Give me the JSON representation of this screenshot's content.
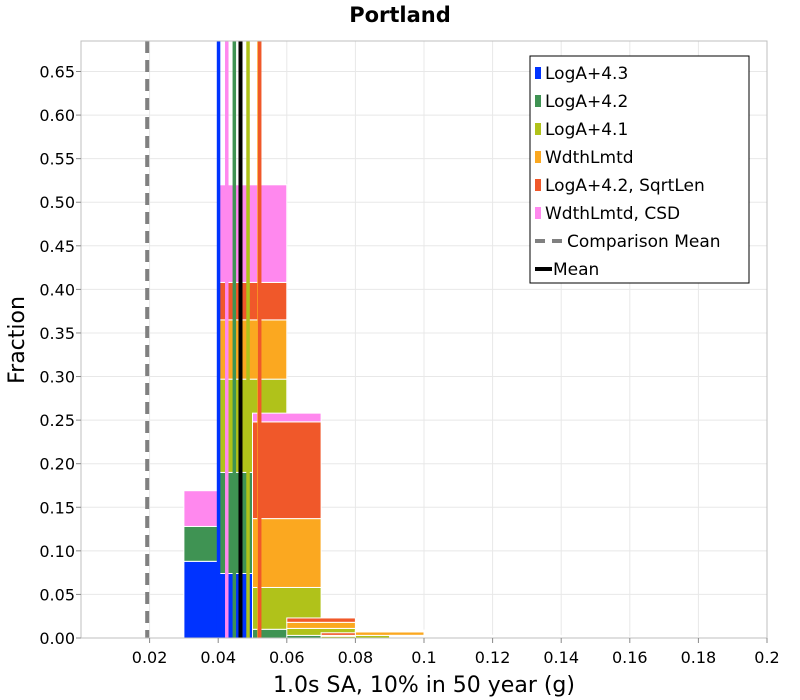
{
  "chart_data": {
    "type": "bar",
    "stacked": true,
    "title": "Portland",
    "xlabel": "1.0s SA, 10% in 50 year (g)",
    "ylabel": "Fraction",
    "xlim": [
      0.0,
      0.2
    ],
    "ylim": [
      0.0,
      0.685
    ],
    "xticks": [
      0.02,
      0.04,
      0.06,
      0.08,
      0.1,
      0.12,
      0.14,
      0.16,
      0.18,
      0.2
    ],
    "xtick_labels": [
      "0.02",
      "0.04",
      "0.06",
      "0.08",
      "0.1",
      "0.12",
      "0.14",
      "0.16",
      "0.18",
      "0.2"
    ],
    "yticks": [
      0.0,
      0.05,
      0.1,
      0.15,
      0.2,
      0.25,
      0.3,
      0.35,
      0.4,
      0.45,
      0.5,
      0.55,
      0.6,
      0.65
    ],
    "ytick_labels": [
      "0.00",
      "0.05",
      "0.10",
      "0.15",
      "0.20",
      "0.25",
      "0.30",
      "0.35",
      "0.40",
      "0.45",
      "0.50",
      "0.55",
      "0.60",
      "0.65"
    ],
    "grid": true,
    "legend_position": "top-right",
    "bin_width": 0.02,
    "bin_centers": [
      0.04,
      0.05,
      0.06,
      0.07,
      0.08,
      0.09,
      0.1,
      0.11,
      0.12,
      0.13,
      0.14,
      0.15,
      0.17,
      0.185,
      0.2
    ],
    "series": [
      {
        "name": "LogA+4.3",
        "color": "#0033ff",
        "values": [
          0.088,
          0.074,
          0.0,
          0.0,
          0.0,
          0.0,
          0.0,
          0.0,
          0.0,
          0.0,
          0.0,
          0.0,
          0.0,
          0.0,
          0.0
        ]
      },
      {
        "name": "LogA+4.2",
        "color": "#3f9353",
        "values": [
          0.04,
          0.116,
          0.01,
          0.003,
          0.0,
          0.0,
          0.0,
          0.0,
          0.0,
          0.0,
          0.0,
          0.0,
          0.0,
          0.0,
          0.0
        ]
      },
      {
        "name": "LogA+4.1",
        "color": "#b0c21a",
        "values": [
          0.0,
          0.107,
          0.048,
          0.008,
          0.002,
          0.003,
          0.001,
          0.001,
          0.001,
          0.001,
          0.0,
          0.0,
          0.0,
          0.0,
          0.0
        ]
      },
      {
        "name": "WdthLmtd",
        "color": "#fba820",
        "values": [
          0.0,
          0.068,
          0.079,
          0.007,
          0.001,
          0.004,
          0.001,
          0.001,
          0.001,
          0.001,
          0.001,
          0.001,
          0.0,
          0.0,
          0.0
        ]
      },
      {
        "name": "LogA+4.2, SqrtLen",
        "color": "#f0582a",
        "values": [
          0.0,
          0.043,
          0.111,
          0.005,
          0.003,
          0.001,
          0.001,
          0.001,
          0.001,
          0.001,
          0.0,
          0.0,
          0.001,
          0.001,
          0.001
        ]
      },
      {
        "name": "WdthLmtd, CSD",
        "color": "#ff88ee",
        "values": [
          0.041,
          0.112,
          0.01,
          0.0,
          0.0,
          0.001,
          0.0,
          0.0,
          0.0,
          0.0,
          0.0,
          0.0,
          0.0,
          0.0,
          0.0
        ]
      }
    ],
    "mean_lines": [
      {
        "series": "LogA+4.3",
        "x": 0.0401,
        "color": "#0033ff"
      },
      {
        "series": "WdthLmtd, CSD",
        "x": 0.0425,
        "color": "#ff88ee"
      },
      {
        "series": "LogA+4.2",
        "x": 0.0447,
        "color": "#3f9353"
      },
      {
        "series": "LogA+4.1",
        "x": 0.0487,
        "color": "#b0c21a"
      },
      {
        "series": "WdthLmtd",
        "x": 0.0519,
        "color": "#fba820"
      },
      {
        "series": "LogA+4.2, SqrtLen",
        "x": 0.0521,
        "color": "#f0582a"
      }
    ],
    "mean": {
      "label": "Mean",
      "x": 0.0465,
      "color": "#000000"
    },
    "comparison_mean": {
      "label": "Comparison Mean",
      "x": 0.0193,
      "color": "#808080"
    }
  }
}
